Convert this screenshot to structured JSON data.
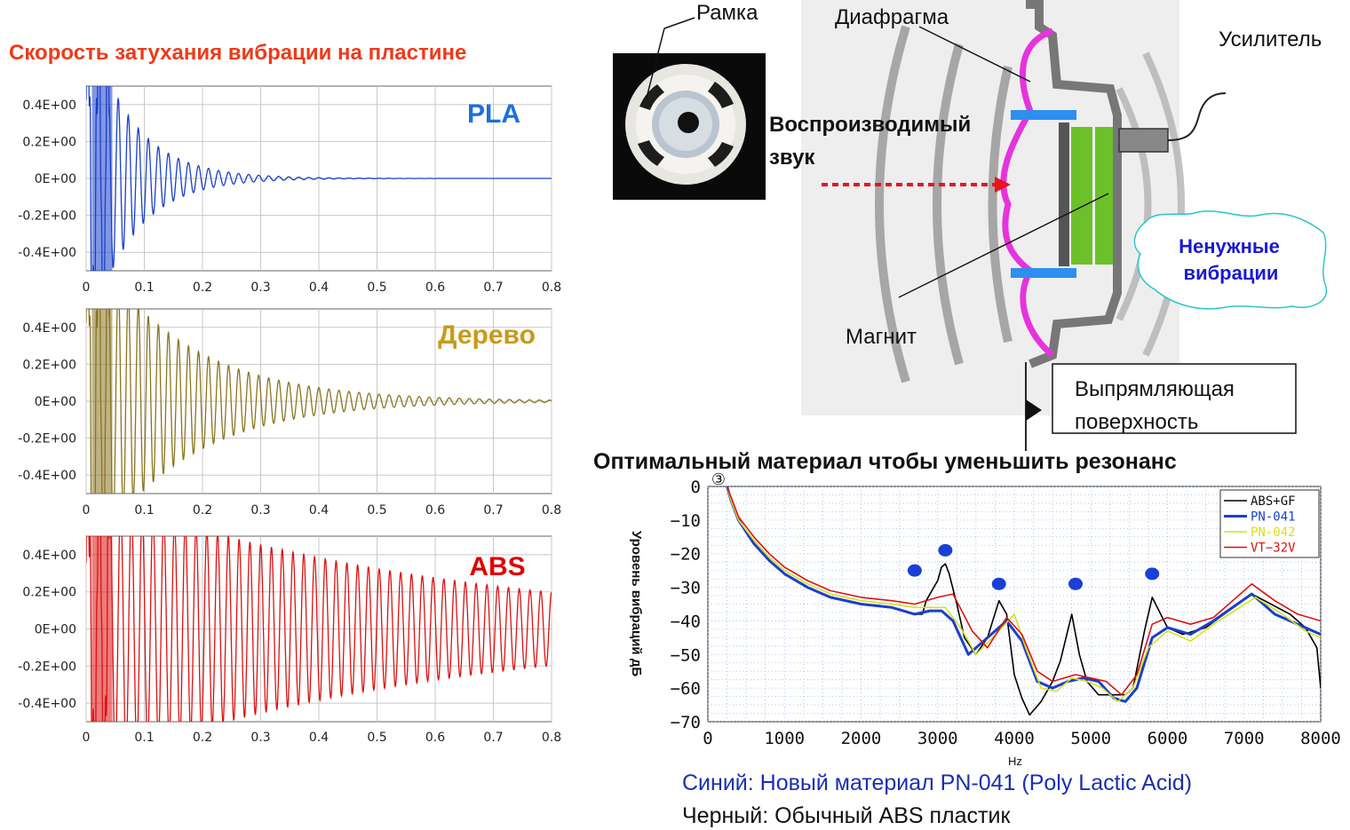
{
  "page": {
    "left_title": "Скорость затухания вибрации на пластине",
    "frame_label": "Рамка",
    "diaphragm_label": "Диафрагма",
    "amplifier_label": "Усилитель",
    "sound_label_1": "Воспроизводимый",
    "sound_label_2": "звук",
    "magnet_label": "Магнит",
    "vibration_label_1": "Ненужные",
    "vibration_label_2": "вибрации",
    "rect_label_1": "Выпрямляющая",
    "rect_label_2": "поверхность",
    "right_title": "Оптимальный материал чтобы уменьшить резонанс",
    "circle_marker": "③",
    "caption_blue": "Синий: Новый материал PN-041 (Poly Lactic Acid)",
    "caption_black": "Черный: Обычный ABS пластик"
  },
  "colors": {
    "title_red": "#ee3a1a",
    "pla": "#1a3fcc",
    "wood": "#8a7420",
    "wood_label": "#c99a1a",
    "abs": "#dd1111",
    "pla_label": "#1a6fe0",
    "abs_label": "#e00000",
    "magenta": "#e633dd",
    "green": "#6cc12a",
    "cyan": "#2ec4cc",
    "dot_blue": "#1a3fd6",
    "caption_blue": "#1a2fb0"
  },
  "chart_data": [
    {
      "type": "line",
      "label": "PLA",
      "x_ticks": [
        "0",
        "0.1",
        "0.2",
        "0.3",
        "0.4",
        "0.5",
        "0.6",
        "0.7",
        "0.8"
      ],
      "y_ticks": [
        "0.4E+00",
        "0.2E+00",
        "0E+00",
        "-0.2E+00",
        "-0.4E+00"
      ],
      "xlim": [
        0,
        0.8
      ],
      "ylim": [
        -0.5,
        0.5
      ],
      "grid": true,
      "decay": {
        "amplitude": 0.9,
        "tau": 0.075,
        "frequency": 58
      }
    },
    {
      "type": "line",
      "label": "Дерево",
      "x_ticks": [
        "0",
        "0.1",
        "0.2",
        "0.3",
        "0.4",
        "0.5",
        "0.6",
        "0.7",
        "0.8"
      ],
      "y_ticks": [
        "0.4E+00",
        "0.2E+00",
        "0E+00",
        "-0.2E+00",
        "-0.4E+00"
      ],
      "xlim": [
        0,
        0.8
      ],
      "ylim": [
        -0.5,
        0.5
      ],
      "grid": true,
      "decay": {
        "amplitude": 0.9,
        "tau": 0.16,
        "frequency": 58
      }
    },
    {
      "type": "line",
      "label": "ABS",
      "x_ticks": [
        "0",
        "0.1",
        "0.2",
        "0.3",
        "0.4",
        "0.5",
        "0.6",
        "0.7",
        "0.8"
      ],
      "y_ticks": [
        "0.4E+00",
        "0.2E+00",
        "0E+00",
        "-0.2E+00",
        "-0.4E+00"
      ],
      "xlim": [
        0,
        0.8
      ],
      "ylim": [
        -0.5,
        0.5
      ],
      "grid": true,
      "decay": {
        "amplitude": 0.75,
        "tau": 0.6,
        "frequency": 54
      }
    },
    {
      "type": "line",
      "xlabel": "Hz",
      "ylabel": "Уровень вибраций дБ",
      "xlim": [
        0,
        8000
      ],
      "ylim": [
        -70,
        0
      ],
      "grid": true,
      "legend_position": "top-right",
      "x_ticks": [
        "0",
        "1000",
        "2000",
        "3000",
        "4000",
        "5000",
        "6000",
        "7000",
        "8000"
      ],
      "y_ticks": [
        "0",
        "−10",
        "−20",
        "−30",
        "−40",
        "−50",
        "−60",
        "−70"
      ],
      "resonance_markers": [
        [
          2700,
          -25
        ],
        [
          3100,
          -19
        ],
        [
          3800,
          -29
        ],
        [
          4800,
          -29
        ],
        [
          5800,
          -26
        ]
      ],
      "series": [
        {
          "name": "ABS+GF",
          "color": "#000000",
          "points": [
            [
              250,
              0
            ],
            [
              300,
              -4
            ],
            [
              400,
              -10
            ],
            [
              600,
              -17
            ],
            [
              800,
              -22
            ],
            [
              1000,
              -26
            ],
            [
              1300,
              -30
            ],
            [
              1600,
              -33
            ],
            [
              2000,
              -35
            ],
            [
              2400,
              -36
            ],
            [
              2700,
              -38
            ],
            [
              2800,
              -38
            ],
            [
              2850,
              -34
            ],
            [
              2950,
              -30
            ],
            [
              3000,
              -28
            ],
            [
              3050,
              -24
            ],
            [
              3100,
              -23
            ],
            [
              3150,
              -26
            ],
            [
              3250,
              -35
            ],
            [
              3350,
              -45
            ],
            [
              3500,
              -50
            ],
            [
              3650,
              -45
            ],
            [
              3800,
              -34
            ],
            [
              3900,
              -38
            ],
            [
              4000,
              -56
            ],
            [
              4100,
              -63
            ],
            [
              4200,
              -68
            ],
            [
              4350,
              -64
            ],
            [
              4500,
              -58
            ],
            [
              4600,
              -52
            ],
            [
              4750,
              -38
            ],
            [
              4850,
              -50
            ],
            [
              4950,
              -58
            ],
            [
              5100,
              -62
            ],
            [
              5300,
              -62
            ],
            [
              5450,
              -62
            ],
            [
              5550,
              -60
            ],
            [
              5700,
              -43
            ],
            [
              5800,
              -33
            ],
            [
              6000,
              -42
            ],
            [
              6200,
              -44
            ],
            [
              6500,
              -42
            ],
            [
              7100,
              -32
            ],
            [
              7600,
              -38
            ],
            [
              7800,
              -42
            ],
            [
              7950,
              -48
            ],
            [
              8000,
              -60
            ]
          ]
        },
        {
          "name": "PN-041",
          "color": "#1a3fcc",
          "points": [
            [
              250,
              0
            ],
            [
              300,
              -4
            ],
            [
              400,
              -10
            ],
            [
              600,
              -17
            ],
            [
              800,
              -22
            ],
            [
              1000,
              -26
            ],
            [
              1300,
              -30
            ],
            [
              1600,
              -33
            ],
            [
              2000,
              -35
            ],
            [
              2400,
              -36
            ],
            [
              2700,
              -38
            ],
            [
              2900,
              -37
            ],
            [
              3050,
              -37
            ],
            [
              3200,
              -40
            ],
            [
              3400,
              -50
            ],
            [
              3600,
              -46
            ],
            [
              3900,
              -40
            ],
            [
              4100,
              -46
            ],
            [
              4300,
              -58
            ],
            [
              4500,
              -60
            ],
            [
              4700,
              -58
            ],
            [
              4900,
              -57
            ],
            [
              5100,
              -58
            ],
            [
              5300,
              -63
            ],
            [
              5450,
              -64
            ],
            [
              5600,
              -60
            ],
            [
              5800,
              -45
            ],
            [
              6000,
              -42
            ],
            [
              6300,
              -44
            ],
            [
              6600,
              -40
            ],
            [
              7100,
              -32
            ],
            [
              7400,
              -38
            ],
            [
              7700,
              -41
            ],
            [
              8000,
              -44
            ]
          ]
        },
        {
          "name": "PN-042",
          "color": "#d6e020",
          "points": [
            [
              250,
              0
            ],
            [
              300,
              -4
            ],
            [
              400,
              -10
            ],
            [
              600,
              -16
            ],
            [
              800,
              -21
            ],
            [
              1000,
              -25
            ],
            [
              1300,
              -29
            ],
            [
              1600,
              -32
            ],
            [
              2000,
              -34
            ],
            [
              2400,
              -35
            ],
            [
              2700,
              -36
            ],
            [
              2900,
              -36
            ],
            [
              3100,
              -36
            ],
            [
              3300,
              -42
            ],
            [
              3500,
              -50
            ],
            [
              3800,
              -43
            ],
            [
              4000,
              -38
            ],
            [
              4150,
              -48
            ],
            [
              4350,
              -60
            ],
            [
              4550,
              -61
            ],
            [
              4750,
              -57
            ],
            [
              4950,
              -58
            ],
            [
              5150,
              -60
            ],
            [
              5350,
              -64
            ],
            [
              5550,
              -60
            ],
            [
              5750,
              -48
            ],
            [
              6000,
              -43
            ],
            [
              6300,
              -46
            ],
            [
              6600,
              -41
            ],
            [
              7150,
              -33
            ],
            [
              7500,
              -38
            ],
            [
              7800,
              -43
            ],
            [
              8000,
              -45
            ]
          ]
        },
        {
          "name": "VT−32V",
          "color": "#dd1111",
          "points": [
            [
              250,
              0
            ],
            [
              300,
              -3
            ],
            [
              400,
              -9
            ],
            [
              600,
              -15
            ],
            [
              800,
              -20
            ],
            [
              1000,
              -24
            ],
            [
              1300,
              -28
            ],
            [
              1600,
              -31
            ],
            [
              2000,
              -33
            ],
            [
              2400,
              -34
            ],
            [
              2700,
              -35
            ],
            [
              3000,
              -33
            ],
            [
              3200,
              -32
            ],
            [
              3450,
              -43
            ],
            [
              3650,
              -48
            ],
            [
              3900,
              -39
            ],
            [
              4100,
              -44
            ],
            [
              4300,
              -55
            ],
            [
              4500,
              -58
            ],
            [
              4800,
              -56
            ],
            [
              5000,
              -57
            ],
            [
              5200,
              -58
            ],
            [
              5400,
              -62
            ],
            [
              5600,
              -56
            ],
            [
              5800,
              -41
            ],
            [
              6000,
              -39
            ],
            [
              6300,
              -41
            ],
            [
              6600,
              -39
            ],
            [
              7100,
              -29
            ],
            [
              7400,
              -34
            ],
            [
              7700,
              -38
            ],
            [
              8000,
              -40
            ]
          ]
        }
      ]
    }
  ]
}
